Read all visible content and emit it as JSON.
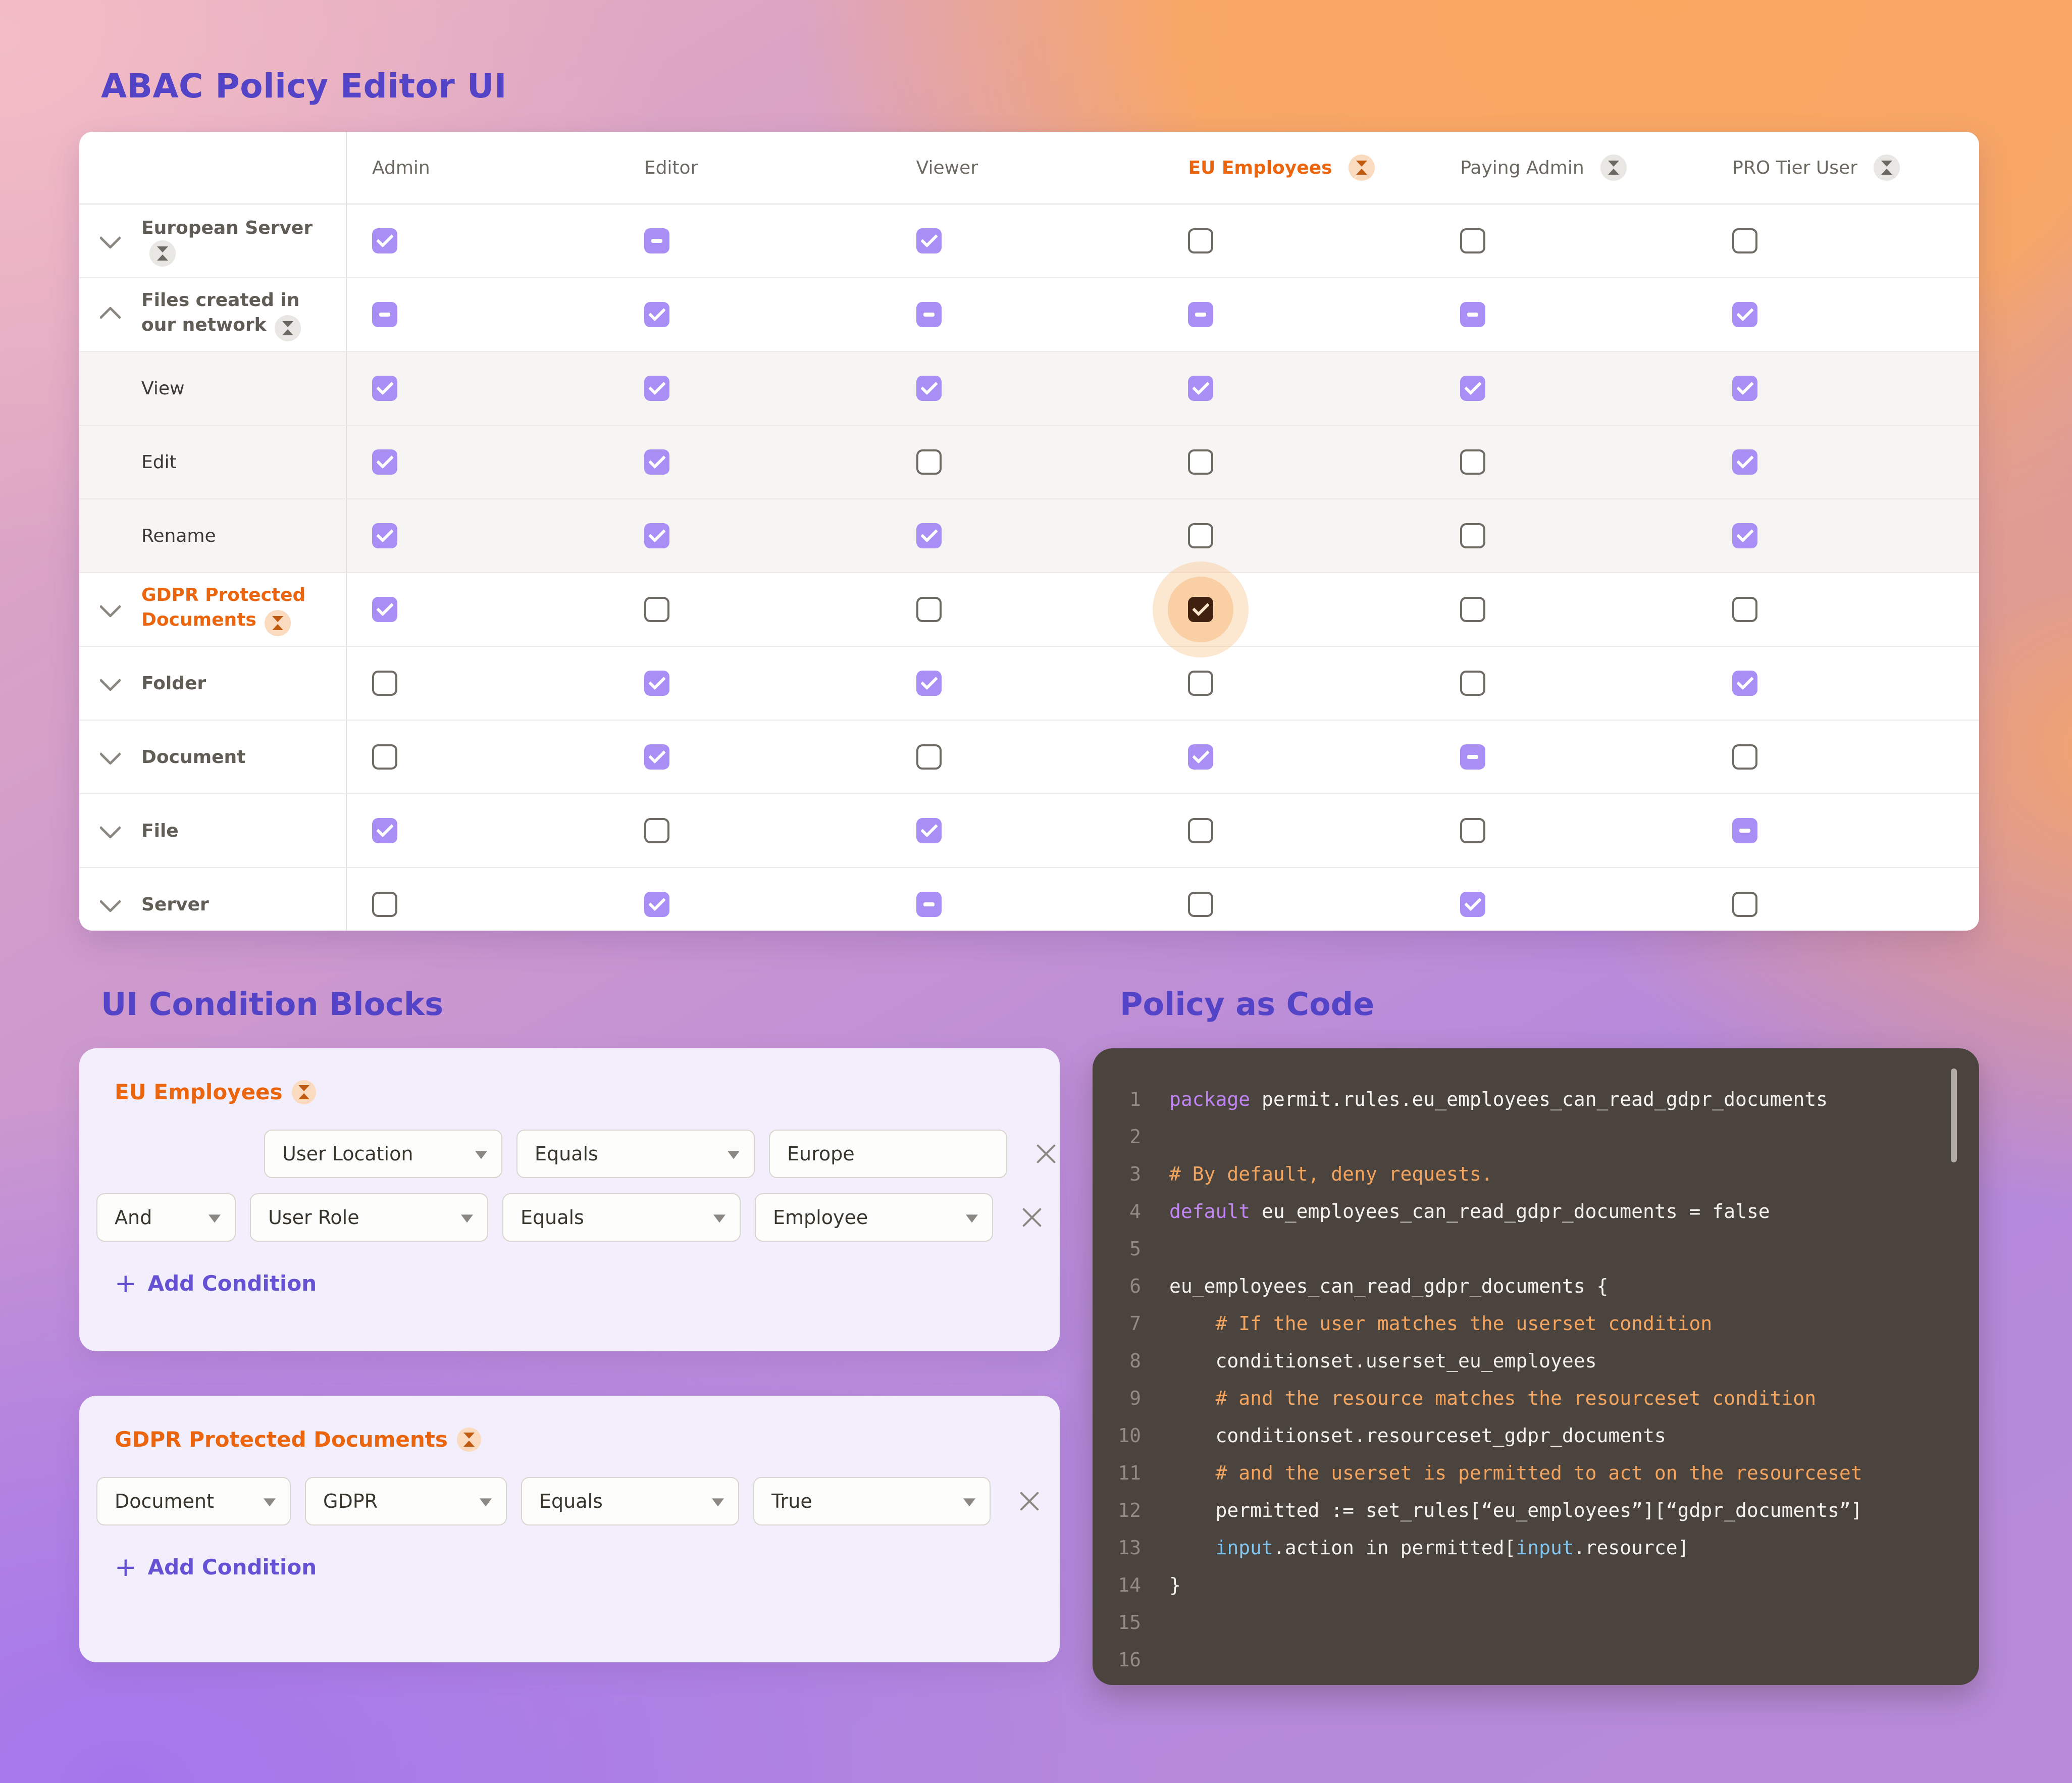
{
  "page": {
    "title": "ABAC Policy Editor UI"
  },
  "colors": {
    "accent_purple_checkbox": "#a88ef5",
    "heading_purple": "#5243c7",
    "accent_orange": "#ea650d",
    "highlight_checkbox_bg": "#40210f",
    "highlight_glow_peach": "#f8c393",
    "code_background": "#4a433e",
    "code_keyword": "#c084f5",
    "code_comment": "#f3a45f",
    "code_builtin": "#82c4ec"
  },
  "icons": {
    "hourglass": "hourglass-badge-icon",
    "chevron_down": "chevron-down-icon",
    "chevron_up": "chevron-up-icon",
    "close": "x-close-icon",
    "plus": "+",
    "caret": "chevron-down-icon"
  },
  "matrix": {
    "columns": [
      {
        "label": "Admin",
        "badge": false,
        "highlight": false
      },
      {
        "label": "Editor",
        "badge": false,
        "highlight": false
      },
      {
        "label": "Viewer",
        "badge": false,
        "highlight": false
      },
      {
        "label": "EU Employees",
        "badge": true,
        "highlight": true
      },
      {
        "label": "Paying Admin",
        "badge": true,
        "highlight": false
      },
      {
        "label": "PRO Tier User",
        "badge": true,
        "highlight": false
      }
    ],
    "rows": [
      {
        "label": "European Server",
        "chevron": "down",
        "badge": true,
        "orange": false,
        "sub": false,
        "states": [
          "checked",
          "indeterminate",
          "checked",
          "unchecked",
          "unchecked",
          "unchecked"
        ]
      },
      {
        "label": "Files created in our network",
        "chevron": "up",
        "badge": true,
        "orange": false,
        "sub": false,
        "states": [
          "indeterminate",
          "checked",
          "indeterminate",
          "indeterminate",
          "indeterminate",
          "checked"
        ]
      },
      {
        "label": "View",
        "chevron": null,
        "badge": false,
        "orange": false,
        "sub": true,
        "states": [
          "checked",
          "checked",
          "checked",
          "checked",
          "checked",
          "checked"
        ]
      },
      {
        "label": "Edit",
        "chevron": null,
        "badge": false,
        "orange": false,
        "sub": true,
        "states": [
          "checked",
          "checked",
          "unchecked",
          "unchecked",
          "unchecked",
          "checked"
        ]
      },
      {
        "label": "Rename",
        "chevron": null,
        "badge": false,
        "orange": false,
        "sub": true,
        "states": [
          "checked",
          "checked",
          "checked",
          "unchecked",
          "unchecked",
          "checked"
        ]
      },
      {
        "label": "GDPR Protected Documents",
        "chevron": "down",
        "badge": true,
        "orange": true,
        "sub": false,
        "states": [
          "checked",
          "unchecked",
          "unchecked",
          "checked-highlight",
          "unchecked",
          "unchecked"
        ]
      },
      {
        "label": "Folder",
        "chevron": "down",
        "badge": false,
        "orange": false,
        "sub": false,
        "states": [
          "unchecked",
          "checked",
          "checked",
          "unchecked",
          "unchecked",
          "checked"
        ]
      },
      {
        "label": "Document",
        "chevron": "down",
        "badge": false,
        "orange": false,
        "sub": false,
        "states": [
          "unchecked",
          "checked",
          "unchecked",
          "checked",
          "indeterminate",
          "unchecked"
        ]
      },
      {
        "label": "File",
        "chevron": "down",
        "badge": false,
        "orange": false,
        "sub": false,
        "states": [
          "checked",
          "unchecked",
          "checked",
          "unchecked",
          "unchecked",
          "indeterminate"
        ]
      },
      {
        "label": "Server",
        "chevron": "down",
        "badge": false,
        "orange": false,
        "sub": false,
        "states": [
          "unchecked",
          "checked",
          "indeterminate",
          "unchecked",
          "checked",
          "unchecked"
        ]
      }
    ]
  },
  "condition_blocks": {
    "heading": "UI Condition Blocks",
    "cards": [
      {
        "title": "EU Employees",
        "add_condition_label": "Add Condition",
        "plus": "+",
        "rows": [
          {
            "logic": null,
            "indent": true,
            "fields": [
              {
                "value": "User Location",
                "type": "select"
              },
              {
                "value": "Equals",
                "type": "select"
              },
              {
                "value": "Europe",
                "type": "input"
              }
            ]
          },
          {
            "logic": "And",
            "indent": false,
            "fields": [
              {
                "value": "User Role",
                "type": "select"
              },
              {
                "value": "Equals",
                "type": "select"
              },
              {
                "value": "Employee",
                "type": "select"
              }
            ]
          }
        ]
      },
      {
        "title": "GDPR Protected Documents",
        "add_condition_label": "Add Condition",
        "plus": "+",
        "rows": [
          {
            "logic": null,
            "indent": false,
            "fields": [
              {
                "value": "Document",
                "type": "select"
              },
              {
                "value": "GDPR",
                "type": "select"
              },
              {
                "value": "Equals",
                "type": "select"
              },
              {
                "value": "True",
                "type": "select"
              }
            ]
          }
        ]
      }
    ]
  },
  "policy_code": {
    "heading": "Policy as Code",
    "lines": [
      {
        "n": "1",
        "tokens": [
          [
            "kw",
            "package "
          ],
          [
            "pl",
            "permit.rules.eu_employees_can_read_gdpr_documents"
          ]
        ]
      },
      {
        "n": "2",
        "tokens": []
      },
      {
        "n": "3",
        "tokens": [
          [
            "cm",
            "# By default, deny requests."
          ]
        ]
      },
      {
        "n": "4",
        "tokens": [
          [
            "kw",
            "default "
          ],
          [
            "pl",
            "eu_employees_can_read_gdpr_documents = false"
          ]
        ]
      },
      {
        "n": "5",
        "tokens": []
      },
      {
        "n": "6",
        "tokens": [
          [
            "pl",
            "eu_employees_can_read_gdpr_documents {"
          ]
        ]
      },
      {
        "n": "7",
        "tokens": [
          [
            "cm",
            "    # If the user matches the userset condition"
          ]
        ]
      },
      {
        "n": "8",
        "tokens": [
          [
            "pl",
            "    conditionset.userset_eu_employees"
          ]
        ]
      },
      {
        "n": "9",
        "tokens": [
          [
            "cm",
            "    # and the resource matches the resourceset condition"
          ]
        ]
      },
      {
        "n": "10",
        "tokens": [
          [
            "pl",
            "    conditionset.resourceset_gdpr_documents"
          ]
        ]
      },
      {
        "n": "11",
        "tokens": [
          [
            "cm",
            "    # and the userset is permitted to act on the resourceset"
          ]
        ]
      },
      {
        "n": "12",
        "tokens": [
          [
            "pl",
            "    permitted := set_rules[“eu_employees”][“gdpr_documents”]"
          ]
        ]
      },
      {
        "n": "13",
        "tokens": [
          [
            "in",
            "    input"
          ],
          [
            "pl",
            ".action in permitted["
          ],
          [
            "in",
            "input"
          ],
          [
            "pl",
            ".resource]"
          ]
        ]
      },
      {
        "n": "14",
        "tokens": [
          [
            "pl",
            "}"
          ]
        ]
      },
      {
        "n": "15",
        "tokens": []
      },
      {
        "n": "16",
        "tokens": []
      }
    ]
  }
}
